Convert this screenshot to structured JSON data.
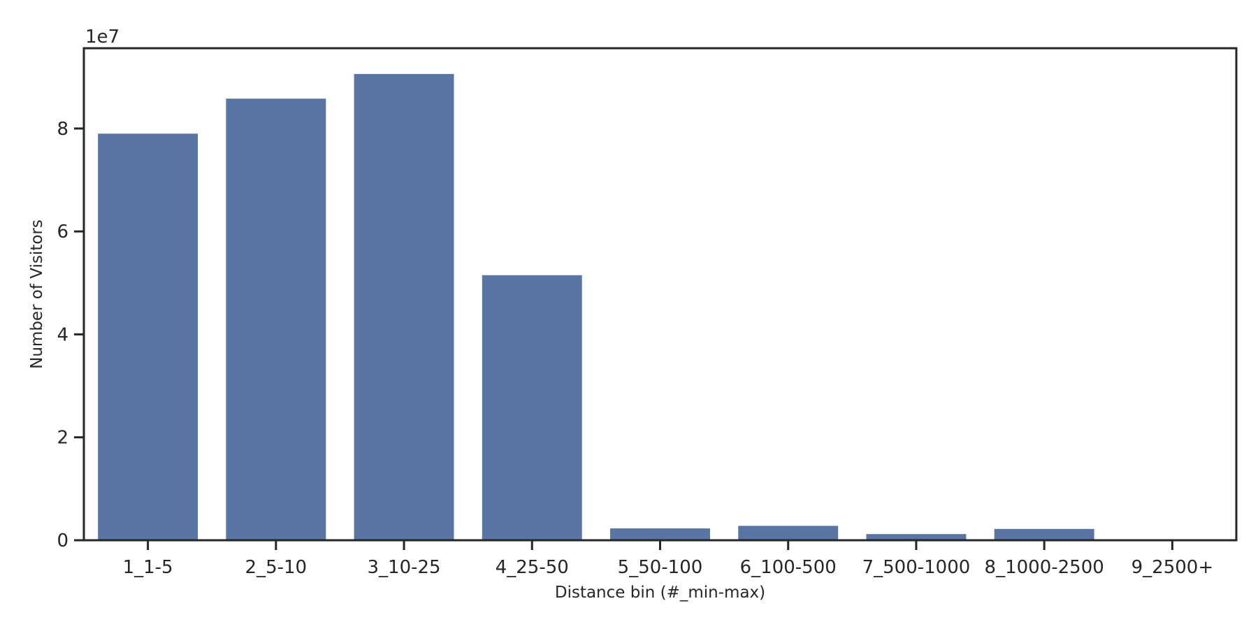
{
  "chart_data": {
    "type": "bar",
    "categories": [
      "1_1-5",
      "2_5-10",
      "3_10-25",
      "4_25-50",
      "5_50-100",
      "6_100-500",
      "7_500-1000",
      "8_1000-2500",
      "9_2500+"
    ],
    "values": [
      79000000,
      85800000,
      90600000,
      51500000,
      2300000,
      2800000,
      1200000,
      2200000,
      50000
    ],
    "xlabel": "Distance bin (#_min-max)",
    "ylabel": "Number of Visitors",
    "y_offset_label": "1e7",
    "y_tick_values": [
      0,
      20000000,
      40000000,
      60000000,
      80000000
    ],
    "y_tick_labels": [
      "0",
      "2",
      "4",
      "6",
      "8"
    ],
    "ylim": [
      0,
      95600000
    ],
    "grid": false,
    "bar_color": "#5975a4"
  }
}
